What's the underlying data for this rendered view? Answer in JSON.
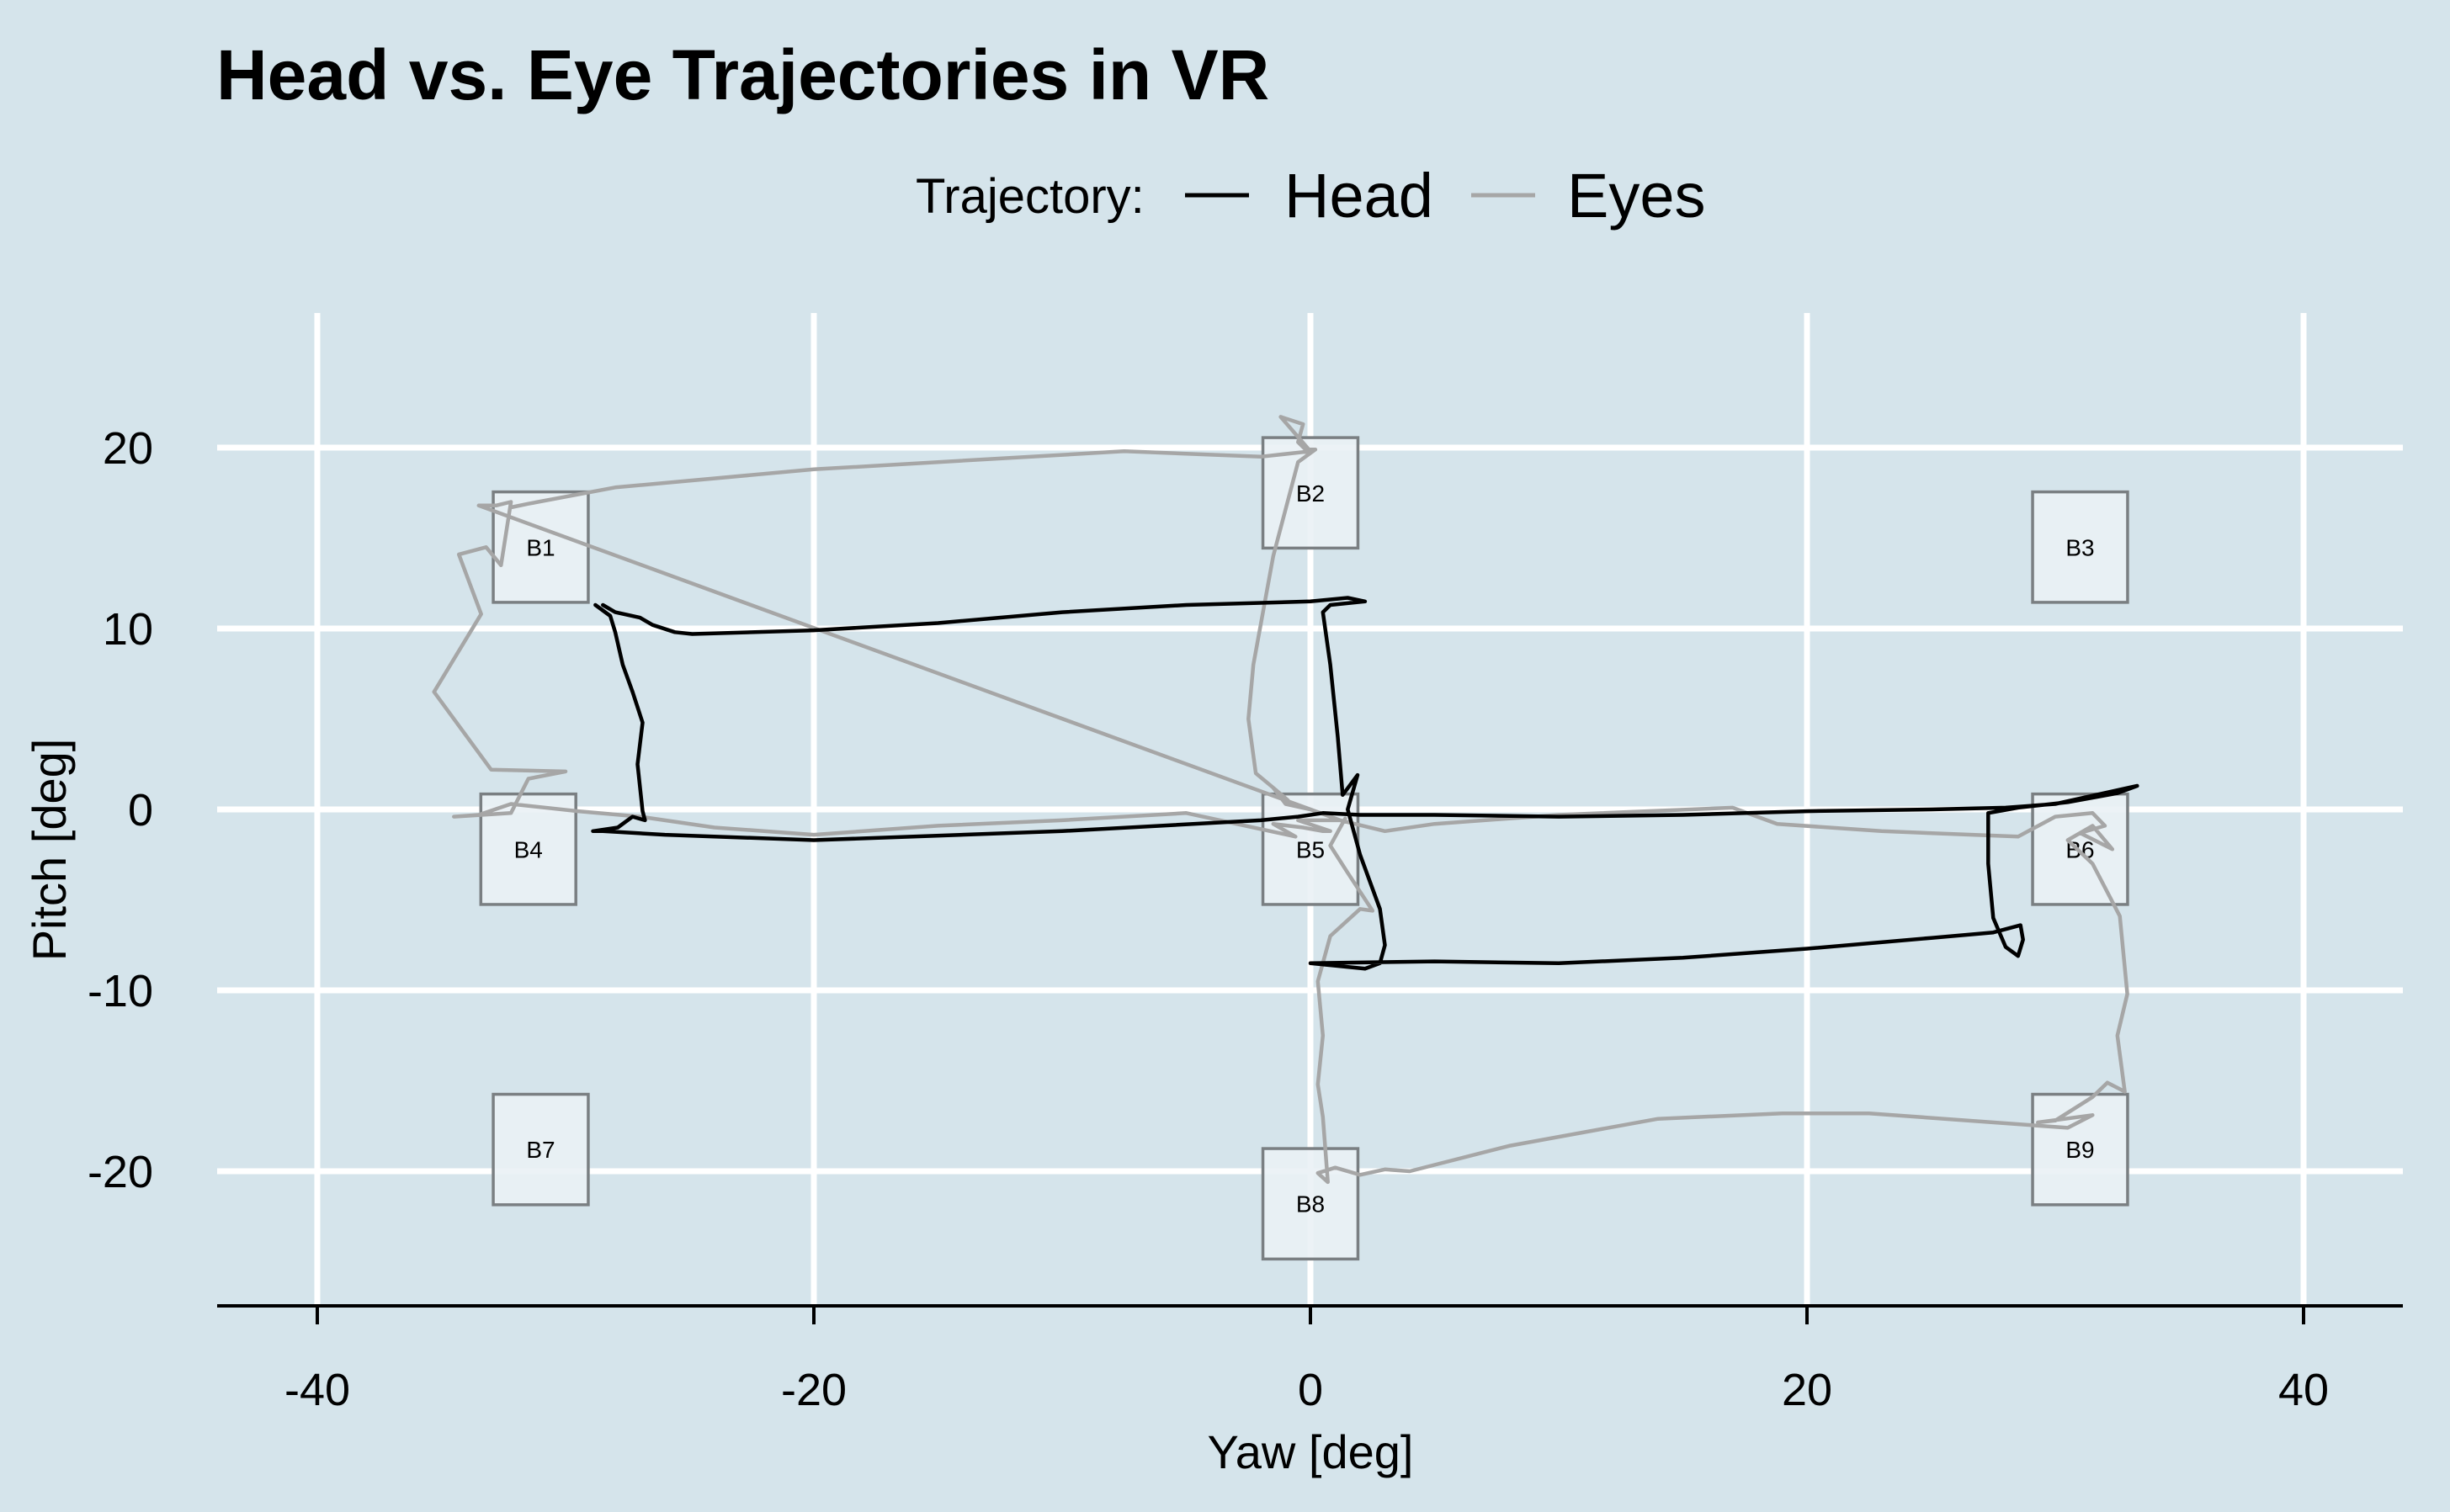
{
  "chart_data": {
    "type": "line",
    "title": "Head vs. Eye Trajectories in VR",
    "xlabel": "Yaw [deg]",
    "ylabel": "Pitch [deg]",
    "xlim": [
      -44,
      44
    ],
    "ylim": [
      -27,
      28
    ],
    "x_ticks": [
      -40,
      -20,
      0,
      20,
      40
    ],
    "y_ticks": [
      -20,
      -10,
      0,
      10,
      20
    ],
    "grid": true,
    "legend": {
      "title": "Trajectory:",
      "position": "top",
      "entries": [
        "Head",
        "Eyes"
      ]
    },
    "targets": [
      {
        "label": "B1",
        "x": -31,
        "y": 14.5
      },
      {
        "label": "B2",
        "x": 0,
        "y": 17.5
      },
      {
        "label": "B3",
        "x": 31,
        "y": 14.5
      },
      {
        "label": "B4",
        "x": -31.5,
        "y": -2.2
      },
      {
        "label": "B5",
        "x": 0,
        "y": -2.2
      },
      {
        "label": "B6",
        "x": 31,
        "y": -2.2
      },
      {
        "label": "B7",
        "x": -31,
        "y": -18.8
      },
      {
        "label": "B8",
        "x": 0,
        "y": -21.8
      },
      {
        "label": "B9",
        "x": 31,
        "y": -18.8
      }
    ],
    "target_size": 4.3,
    "series": [
      {
        "name": "Head",
        "color": "#000000",
        "points": [
          [
            -28.5,
            11.3
          ],
          [
            -28,
            10.9
          ],
          [
            -27,
            10.6
          ],
          [
            -26.5,
            10.2
          ],
          [
            -25.6,
            9.8
          ],
          [
            -24.9,
            9.7
          ],
          [
            -20,
            9.9
          ],
          [
            -15,
            10.3
          ],
          [
            -10,
            10.9
          ],
          [
            -5,
            11.3
          ],
          [
            0,
            11.5
          ],
          [
            1.5,
            11.7
          ],
          [
            2.2,
            11.5
          ],
          [
            0.8,
            11.3
          ],
          [
            0.5,
            10.9
          ],
          [
            0.8,
            8
          ],
          [
            1.1,
            4
          ],
          [
            1.3,
            0.8
          ],
          [
            1.9,
            1.9
          ],
          [
            1.5,
            0
          ],
          [
            2,
            -2.5
          ],
          [
            2.8,
            -5.5
          ],
          [
            3,
            -7.5
          ],
          [
            2.8,
            -8.5
          ],
          [
            2.2,
            -8.8
          ],
          [
            0,
            -8.5
          ],
          [
            5,
            -8.4
          ],
          [
            10,
            -8.5
          ],
          [
            15,
            -8.2
          ],
          [
            20,
            -7.7
          ],
          [
            25,
            -7.1
          ],
          [
            27.5,
            -6.8
          ],
          [
            28.6,
            -6.4
          ],
          [
            28.7,
            -7.2
          ],
          [
            28.5,
            -8.1
          ],
          [
            28,
            -7.6
          ],
          [
            27.5,
            -6
          ],
          [
            27.3,
            -3
          ],
          [
            27.3,
            -0.2
          ],
          [
            28.5,
            0.1
          ],
          [
            30.5,
            0.4
          ],
          [
            32.5,
            0.9
          ],
          [
            33.3,
            1.3
          ],
          [
            30,
            0.3
          ],
          [
            28,
            0.1
          ],
          [
            25,
            0
          ],
          [
            20,
            -0.1
          ],
          [
            15,
            -0.3
          ],
          [
            10,
            -0.4
          ],
          [
            5,
            -0.3
          ],
          [
            2,
            -0.3
          ],
          [
            0.5,
            -0.2
          ],
          [
            -0.5,
            -0.4
          ],
          [
            -2,
            -0.6
          ],
          [
            -10,
            -1.2
          ],
          [
            -20,
            -1.7
          ],
          [
            -26,
            -1.4
          ],
          [
            -28.5,
            -1.2
          ],
          [
            -28.9,
            -1.2
          ],
          [
            -27.9,
            -1
          ],
          [
            -27.3,
            -0.4
          ],
          [
            -26.8,
            -0.6
          ],
          [
            -26.9,
            -0.1
          ],
          [
            -27.1,
            2.5
          ],
          [
            -26.9,
            4.8
          ],
          [
            -27.3,
            6.5
          ],
          [
            -27.7,
            8
          ],
          [
            -28,
            9.8
          ],
          [
            -28.2,
            10.7
          ],
          [
            -28.8,
            11.3
          ]
        ]
      },
      {
        "name": "Eyes",
        "color": "#a6a6a6",
        "points": [
          [
            -32.2,
            16.7
          ],
          [
            -31.5,
            16.9
          ],
          [
            -28,
            17.8
          ],
          [
            -20,
            18.8
          ],
          [
            -7.5,
            19.8
          ],
          [
            -2,
            19.5
          ],
          [
            0,
            19.8
          ],
          [
            -1.2,
            21.7
          ],
          [
            -0.3,
            21.3
          ],
          [
            -0.5,
            20.3
          ],
          [
            -0.2,
            19.9
          ],
          [
            0.2,
            19.9
          ],
          [
            -0.5,
            19.2
          ],
          [
            -1.5,
            14
          ],
          [
            -2.3,
            8
          ],
          [
            -2.5,
            5
          ],
          [
            -2.2,
            2
          ],
          [
            -1.5,
            1.2
          ],
          [
            -0.9,
            0.5
          ],
          [
            -1.5,
            1.2
          ],
          [
            -1,
            0.3
          ],
          [
            0,
            0
          ],
          [
            1.2,
            -0.6
          ],
          [
            -0.5,
            -0.6
          ],
          [
            0.8,
            -1.2
          ],
          [
            0.5,
            -1.2
          ],
          [
            -0.3,
            -1
          ],
          [
            -1.5,
            -0.8
          ],
          [
            -0.6,
            -1.5
          ],
          [
            -5,
            -0.2
          ],
          [
            -10,
            -0.6
          ],
          [
            -15,
            -0.9
          ],
          [
            -20,
            -1.4
          ],
          [
            -24,
            -1
          ],
          [
            -27,
            -0.4
          ],
          [
            -29.5,
            -0.1
          ],
          [
            -32.2,
            0.3
          ],
          [
            -33.5,
            -0.3
          ],
          [
            -34.5,
            -0.4
          ],
          [
            -32.2,
            -0.2
          ],
          [
            -31.5,
            1.7
          ],
          [
            -30,
            2.1
          ],
          [
            -33,
            2.2
          ],
          [
            -35.3,
            6.5
          ],
          [
            -33.4,
            10.8
          ],
          [
            -34.3,
            14.1
          ],
          [
            -33.2,
            14.5
          ],
          [
            -32.6,
            13.5
          ],
          [
            -32.2,
            17
          ],
          [
            -32.8,
            16.8
          ],
          [
            -33.5,
            16.8
          ],
          [
            1.2,
            -0.6
          ],
          [
            3,
            -1.2
          ],
          [
            5,
            -0.8
          ],
          [
            10,
            -0.3
          ],
          [
            17,
            0.1
          ],
          [
            18.8,
            -0.8
          ],
          [
            23,
            -1.2
          ],
          [
            28.5,
            -1.5
          ],
          [
            30,
            -0.4
          ],
          [
            31.5,
            -0.2
          ],
          [
            32,
            -0.9
          ],
          [
            31,
            -1.3
          ],
          [
            32.3,
            -2.2
          ],
          [
            31.5,
            -0.9
          ],
          [
            30.5,
            -1.7
          ],
          [
            31.5,
            -3
          ],
          [
            32.6,
            -5.9
          ],
          [
            32.9,
            -10.2
          ],
          [
            32.5,
            -12.5
          ],
          [
            32.8,
            -15.6
          ],
          [
            32.1,
            -15.1
          ],
          [
            31.5,
            -15.9
          ],
          [
            30,
            -17.2
          ],
          [
            29.3,
            -17.3
          ],
          [
            31.5,
            -16.9
          ],
          [
            30.5,
            -17.6
          ],
          [
            22.5,
            -16.8
          ],
          [
            19,
            -16.8
          ],
          [
            14,
            -17.1
          ],
          [
            8,
            -18.6
          ],
          [
            4,
            -20
          ],
          [
            3,
            -19.9
          ],
          [
            2,
            -20.2
          ],
          [
            1,
            -19.8
          ],
          [
            0.3,
            -20.1
          ],
          [
            0.7,
            -20.6
          ],
          [
            0.5,
            -17
          ],
          [
            0.3,
            -15.2
          ],
          [
            0.5,
            -12.5
          ],
          [
            0.3,
            -9.5
          ],
          [
            0.8,
            -7
          ],
          [
            2,
            -5.5
          ],
          [
            2.5,
            -5.6
          ],
          [
            1.5,
            -3.5
          ],
          [
            0.8,
            -2
          ],
          [
            1.4,
            -0.5
          ]
        ]
      }
    ]
  }
}
